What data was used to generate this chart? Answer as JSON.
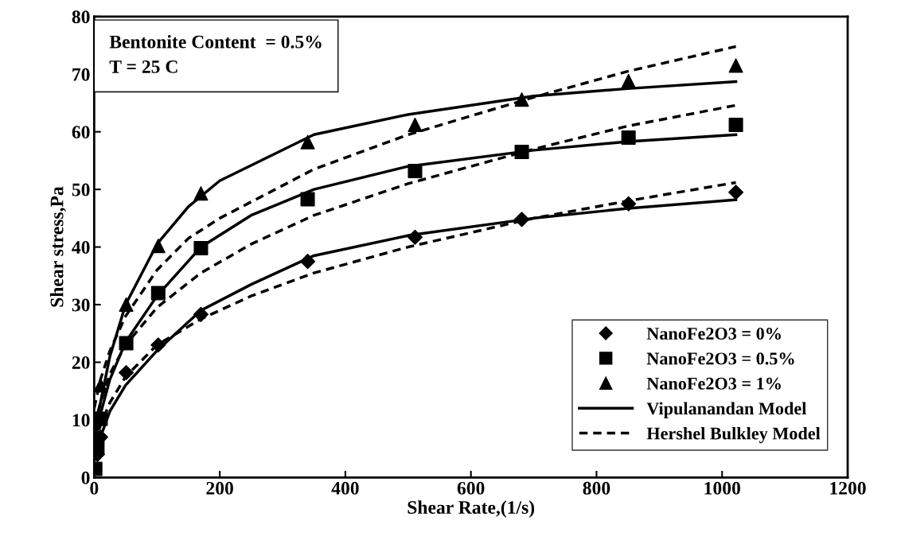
{
  "chart_data": {
    "type": "scatter",
    "xlabel": "Shear Rate,(1/s)",
    "ylabel": "Shear stress,Pa",
    "xlim": [
      0,
      1200
    ],
    "xticks": [
      0,
      200,
      400,
      600,
      800,
      1000,
      1200
    ],
    "ylim": [
      0,
      80
    ],
    "yticks": [
      0,
      10,
      20,
      30,
      40,
      50,
      60,
      70,
      80
    ],
    "grid": false,
    "legend": "bottom right",
    "annotations": [
      "Bentonite Content  = 0.5%\nT = 25 C"
    ],
    "series": [
      {
        "name": "NanoFe2O3 = 0%",
        "marker": "diamond",
        "color": "#000000",
        "x": [
          5.1,
          10.2,
          51,
          102,
          170,
          340,
          511,
          681,
          851,
          1022
        ],
        "values": [
          4,
          7,
          18.2,
          23,
          28.3,
          37.5,
          41.7,
          44.8,
          47.5,
          49.5
        ]
      },
      {
        "name": "NanoFe2O3 = 0.5%",
        "marker": "square",
        "color": "#000000",
        "x": [
          1.7,
          5.1,
          10.2,
          51,
          102,
          170,
          340,
          511,
          681,
          851,
          1022
        ],
        "values": [
          1.5,
          5.2,
          10.2,
          23.3,
          32,
          39.8,
          48.3,
          53.2,
          56.5,
          59,
          61.2
        ]
      },
      {
        "name": "NanoFe2O3 = 1%",
        "marker": "triangle",
        "color": "#000000",
        "x": [
          10.2,
          51,
          102,
          170,
          340,
          511,
          681,
          851,
          1022
        ],
        "values": [
          16,
          30,
          40.2,
          49.3,
          58.2,
          61.2,
          65.6,
          68.8,
          71.5
        ]
      },
      {
        "name": "Vipulanandan Model",
        "type": "line",
        "line_style": "solid",
        "marker": "none",
        "color": "#000000",
        "x": [
          0,
          10,
          25,
          50,
          100,
          150,
          200,
          350,
          500,
          700,
          850,
          1022
        ],
        "values": [
          7,
          13,
          21,
          30,
          40.5,
          47,
          51.5,
          59.5,
          63,
          66.2,
          67.5,
          68.7
        ]
      },
      {
        "type": "line",
        "line_style": "solid",
        "marker": "none",
        "color": "#000000",
        "x": [
          0,
          10,
          25,
          50,
          100,
          170,
          250,
          350,
          500,
          700,
          850,
          1022
        ],
        "values": [
          5,
          11,
          17,
          23.5,
          31.5,
          40,
          45.5,
          50,
          54,
          56.8,
          58.3,
          59.5
        ]
      },
      {
        "type": "line",
        "line_style": "solid",
        "marker": "none",
        "color": "#000000",
        "x": [
          0,
          10,
          25,
          50,
          100,
          170,
          250,
          350,
          500,
          700,
          850,
          1022
        ],
        "values": [
          3,
          7,
          11.5,
          16,
          22,
          29,
          33.5,
          38.5,
          42,
          45,
          46.7,
          48.2
        ]
      },
      {
        "name": "Hershel Bulkley Model",
        "type": "line",
        "line_style": "dashed",
        "marker": "none",
        "color": "#000000",
        "x": [
          0,
          10,
          25,
          50,
          100,
          150,
          200,
          350,
          500,
          700,
          850,
          1022
        ],
        "values": [
          12,
          17,
          22,
          28,
          36,
          41.5,
          45,
          53.5,
          59.5,
          66,
          70.5,
          74.8
        ]
      },
      {
        "type": "line",
        "line_style": "dashed",
        "marker": "none",
        "color": "#000000",
        "x": [
          0,
          10,
          25,
          50,
          100,
          170,
          250,
          350,
          500,
          700,
          850,
          1022
        ],
        "values": [
          9,
          13,
          18,
          23,
          29.5,
          35.5,
          40.5,
          45.5,
          51,
          57,
          61,
          64.6
        ]
      },
      {
        "type": "line",
        "line_style": "dashed",
        "marker": "none",
        "color": "#000000",
        "x": [
          0,
          10,
          25,
          50,
          100,
          170,
          250,
          350,
          500,
          700,
          850,
          1022
        ],
        "values": [
          6,
          9,
          13,
          17.5,
          23,
          27.5,
          31.5,
          35.5,
          40,
          45,
          48,
          51.2
        ]
      }
    ]
  }
}
